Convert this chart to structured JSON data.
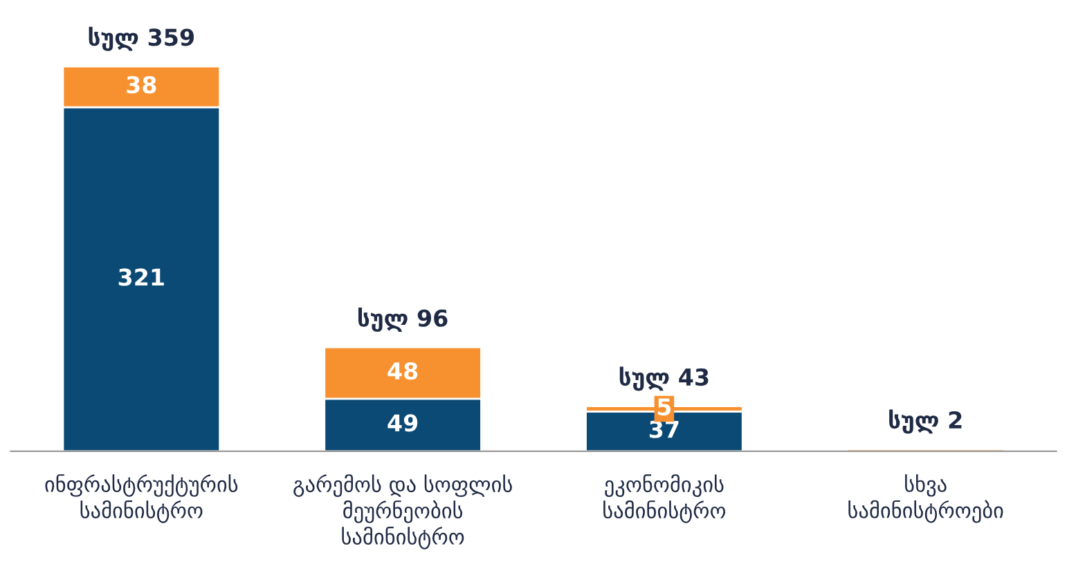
{
  "chart_data": {
    "type": "bar",
    "stacked": true,
    "data_labels": true,
    "categories": [
      "ინფრასტრუქტურის\nსამინისტრო",
      "გარემოს და სოფლის\nმეურნეობის\nსამინისტრო",
      "ეკონომიკის\nსამინისტრო",
      "სხვა\nსამინისტროები"
    ],
    "series": [
      {
        "color": "#0b4a74",
        "values": [
          321,
          49,
          37,
          0
        ],
        "value_labels": [
          "321",
          "49",
          "37",
          null
        ]
      },
      {
        "color": "#f7902f",
        "values": [
          38,
          48,
          5,
          2
        ],
        "value_labels": [
          "38",
          "48",
          "5",
          null
        ]
      }
    ],
    "totals": [
      "სულ 359",
      "სულ 96",
      "სულ 43",
      "სულ 2"
    ],
    "grid": false,
    "legend": false
  }
}
